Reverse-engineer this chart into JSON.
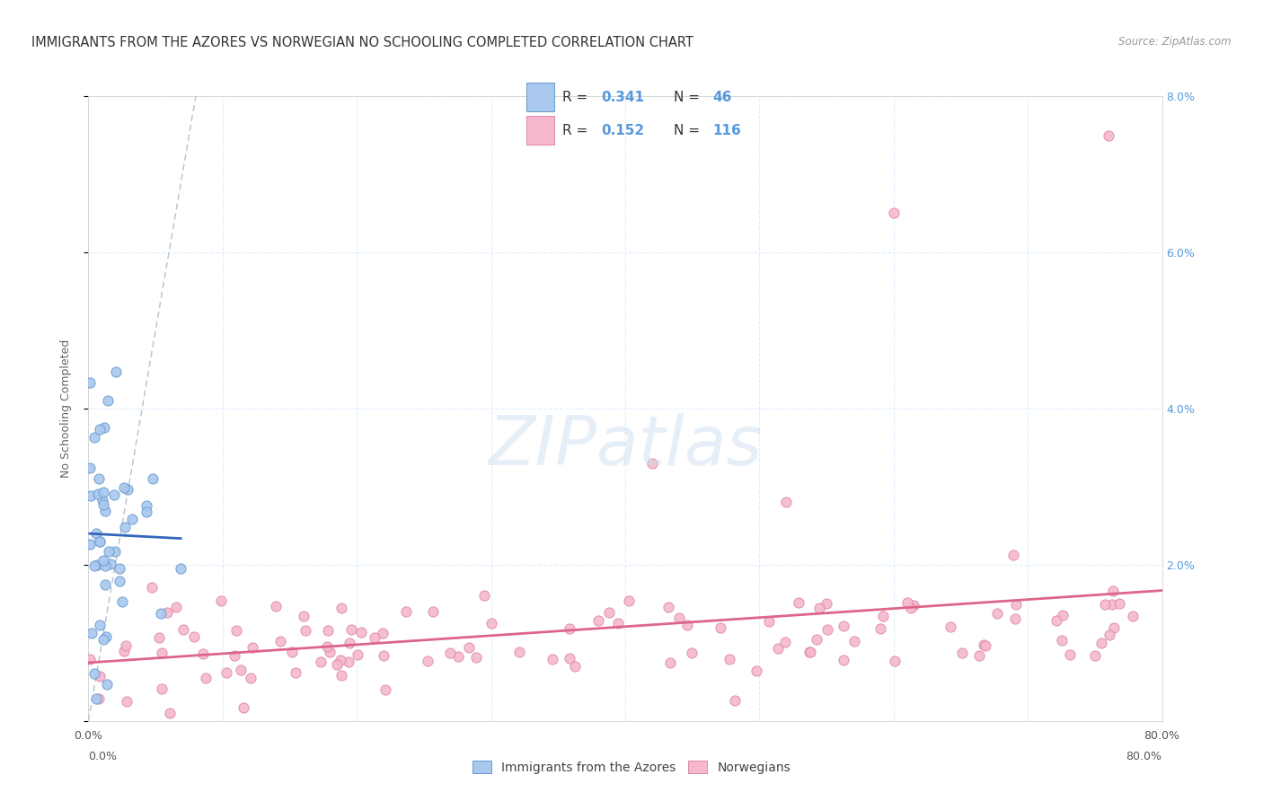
{
  "title": "IMMIGRANTS FROM THE AZORES VS NORWEGIAN NO SCHOOLING COMPLETED CORRELATION CHART",
  "source": "Source: ZipAtlas.com",
  "ylabel": "No Schooling Completed",
  "xlim": [
    0.0,
    0.8
  ],
  "ylim": [
    0.0,
    0.08
  ],
  "xticks": [
    0.0,
    0.1,
    0.2,
    0.3,
    0.4,
    0.5,
    0.6,
    0.7,
    0.8
  ],
  "yticks": [
    0.0,
    0.02,
    0.04,
    0.06,
    0.08
  ],
  "blue_color": "#A8C8EE",
  "blue_edge_color": "#6699CC",
  "pink_color": "#F5B8CC",
  "pink_edge_color": "#DD88AA",
  "blue_line_color": "#3366BB",
  "pink_line_color": "#DD6688",
  "diagonal_color": "#AABBCC",
  "R_blue": 0.341,
  "N_blue": 46,
  "R_pink": 0.152,
  "N_pink": 116,
  "background_color": "#FFFFFF",
  "grid_color": "#DDEEFF",
  "title_fontsize": 10.5,
  "axis_fontsize": 9,
  "tick_fontsize": 9,
  "ytick_color": "#5599DD",
  "xtick_color": "#555555"
}
